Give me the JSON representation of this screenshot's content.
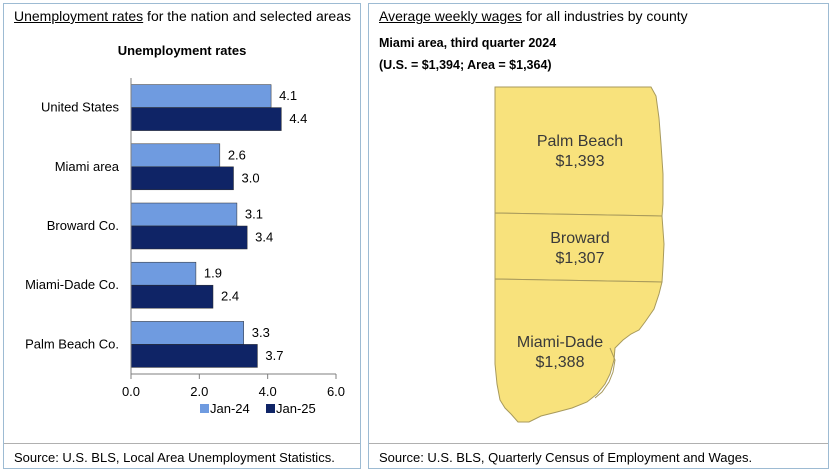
{
  "left_panel": {
    "title_link": "Unemployment rates",
    "title_rest": " for the nation and selected areas",
    "source": "Source: U.S. BLS, Local Area Unemployment Statistics."
  },
  "right_panel": {
    "title_link": "Average weekly wages",
    "title_rest": " for all industries by county",
    "subtitle1": "Miami area, third quarter 2024",
    "subtitle2": "(U.S. = $1,394; Area = $1,364)",
    "source": "Source: U.S. BLS, Quarterly Census of Employment and Wages.",
    "counties": [
      {
        "name": "Palm Beach",
        "wage": "$1,393"
      },
      {
        "name": "Broward",
        "wage": "$1,307"
      },
      {
        "name": "Miami-Dade",
        "wage": "$1,388"
      }
    ]
  },
  "colors": {
    "jan24": "#6f9be0",
    "jan25": "#0f2466",
    "map_fill": "#f8e27c",
    "map_stroke": "#a89a5c",
    "border": "#9dbbd3"
  },
  "chart_data": {
    "type": "bar",
    "orientation": "horizontal",
    "title": "Unemployment rates",
    "categories": [
      "United States",
      "Miami area",
      "Broward Co.",
      "Miami-Dade Co.",
      "Palm Beach Co."
    ],
    "series": [
      {
        "name": "Jan-24",
        "values": [
          4.1,
          2.6,
          3.1,
          1.9,
          3.3
        ]
      },
      {
        "name": "Jan-25",
        "values": [
          4.4,
          3.0,
          3.4,
          2.4,
          3.7
        ]
      }
    ],
    "xlim": [
      0,
      6
    ],
    "xticks": [
      "0.0",
      "2.0",
      "4.0",
      "6.0"
    ],
    "legend": "bottom",
    "grid": false
  }
}
